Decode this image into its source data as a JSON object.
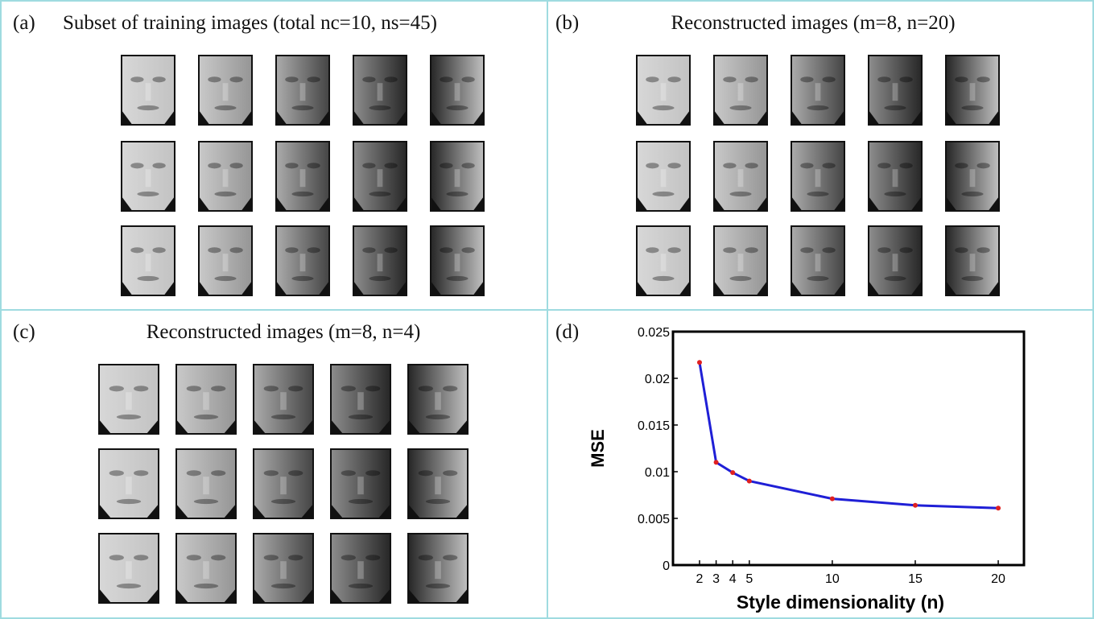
{
  "panels": [
    {
      "label": "(a)",
      "title": "Subset of training images (total nc=10, ns=45)"
    },
    {
      "label": "(b)",
      "title": "Reconstructed images (m=8, n=20)"
    },
    {
      "label": "(c)",
      "title": "Reconstructed images (m=8, n=4)"
    },
    {
      "label": "(d)"
    }
  ],
  "chart_data": {
    "type": "line",
    "xlabel": "Style dimensionality (n)",
    "ylabel": "MSE",
    "x": [
      2,
      3,
      4,
      5,
      10,
      15,
      20
    ],
    "values": [
      0.0217,
      0.011,
      0.0099,
      0.009,
      0.0071,
      0.0064,
      0.0061
    ],
    "color": "#1f1fd6",
    "marker_color": "#e02020",
    "xlim": [
      0.4,
      21.55
    ],
    "ylim": [
      0,
      0.025
    ],
    "xticks": [
      2,
      3,
      4,
      5,
      10,
      15,
      20
    ],
    "yticks": [
      0,
      0.005,
      0.01,
      0.015,
      0.02,
      0.025
    ]
  }
}
